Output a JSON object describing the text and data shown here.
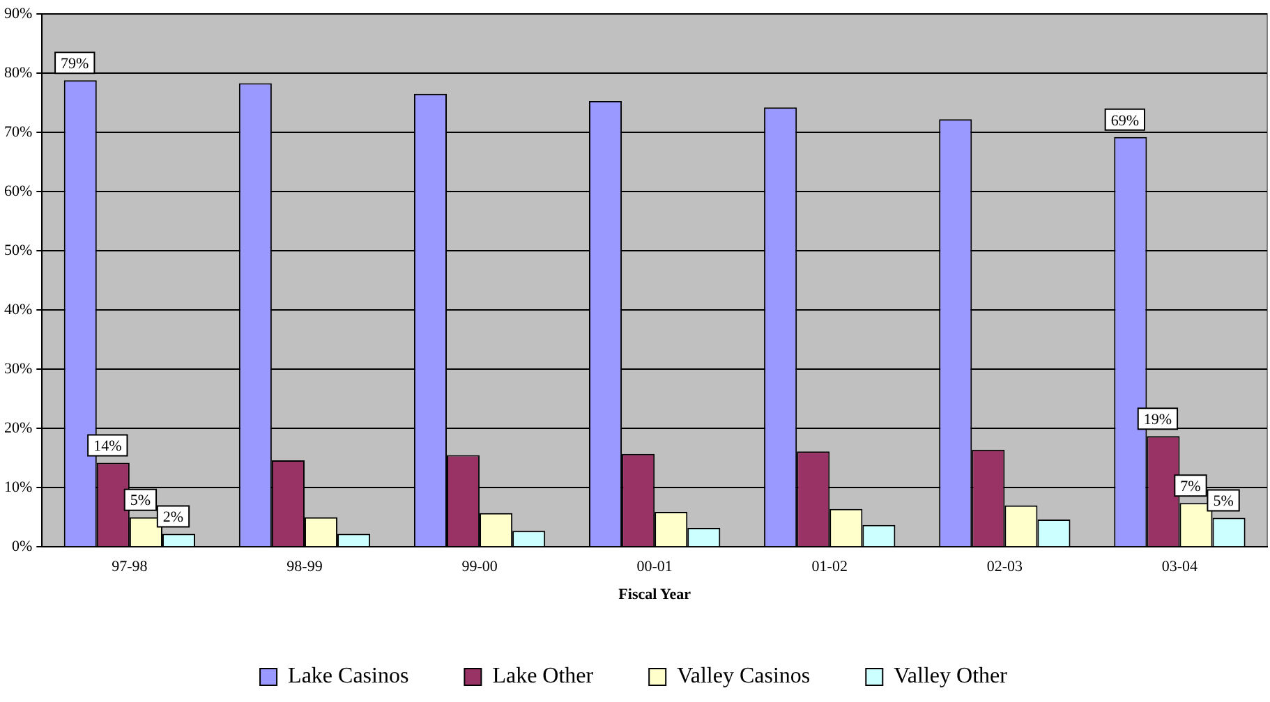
{
  "chart_data": {
    "type": "bar",
    "xlabel": "Fiscal Year",
    "categories": [
      "97-98",
      "98-99",
      "99-00",
      "00-01",
      "01-02",
      "02-03",
      "03-04"
    ],
    "series": [
      {
        "name": "Lake Casinos",
        "color": "#9999ff",
        "values": [
          78.8,
          78.3,
          76.5,
          75.3,
          74.2,
          72.2,
          69.2
        ],
        "value_labels": [
          "79%",
          null,
          null,
          null,
          null,
          null,
          "69%"
        ]
      },
      {
        "name": "Lake Other",
        "color": "#993366",
        "values": [
          14.2,
          14.6,
          15.5,
          15.7,
          16.1,
          16.4,
          18.7
        ],
        "value_labels": [
          "14%",
          null,
          null,
          null,
          null,
          null,
          "19%"
        ]
      },
      {
        "name": "Valley Casinos",
        "color": "#ffffcc",
        "values": [
          5.0,
          5.0,
          5.7,
          5.9,
          6.4,
          7.0,
          7.4
        ],
        "value_labels": [
          "5%",
          null,
          null,
          null,
          null,
          null,
          "7%"
        ]
      },
      {
        "name": "Valley Other",
        "color": "#ccffff",
        "values": [
          2.2,
          2.2,
          2.7,
          3.2,
          3.7,
          4.6,
          4.9
        ],
        "value_labels": [
          "2%",
          null,
          null,
          null,
          null,
          null,
          "5%"
        ]
      }
    ],
    "ylim": [
      0,
      90
    ],
    "yticks": [
      {
        "value": 0,
        "label": "0%"
      },
      {
        "value": 10,
        "label": "10%"
      },
      {
        "value": 20,
        "label": "20%"
      },
      {
        "value": 30,
        "label": "30%"
      },
      {
        "value": 40,
        "label": "40%"
      },
      {
        "value": 50,
        "label": "50%"
      },
      {
        "value": 60,
        "label": "60%"
      },
      {
        "value": 70,
        "label": "70%"
      },
      {
        "value": 80,
        "label": "80%"
      },
      {
        "value": 90,
        "label": "90%"
      }
    ],
    "grid": "y",
    "legend": "bottom"
  }
}
